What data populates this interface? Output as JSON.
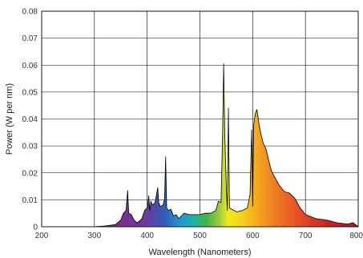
{
  "chart_data": {
    "type": "area",
    "xlabel": "Wavelength (Nanometers)",
    "ylabel": "Power (W per nm)",
    "xlim": [
      200,
      800
    ],
    "ylim": [
      0,
      0.08
    ],
    "x_ticks": [
      "200",
      "300",
      "400",
      "500",
      "600",
      "700",
      "800"
    ],
    "y_ticks": [
      "0",
      "0.01",
      "0.02",
      "0.03",
      "0.04",
      "0.05",
      "0.06",
      "0.07",
      "0.08"
    ],
    "grid": true,
    "fill": "visible-spectrum-gradient",
    "series": [
      {
        "x": [
          300,
          320,
          340,
          350,
          355,
          360,
          363,
          365,
          370,
          375,
          380,
          385,
          390,
          395,
          400,
          403,
          405,
          407,
          410,
          415,
          420,
          422,
          425,
          430,
          433,
          435,
          437,
          440,
          445,
          450,
          455,
          460,
          470,
          480,
          490,
          500,
          510,
          520,
          530,
          535,
          540,
          543,
          545,
          547,
          550,
          552,
          554,
          556,
          560,
          570,
          580,
          590,
          595,
          598,
          600,
          602,
          605,
          608,
          610,
          612,
          615,
          620,
          625,
          630,
          635,
          640,
          650,
          660,
          670,
          680,
          690,
          700,
          720,
          740,
          760,
          780,
          790,
          800
        ],
        "y": [
          0,
          0.0003,
          0.0008,
          0.0025,
          0.005,
          0.006,
          0.0135,
          0.005,
          0.0045,
          0.0025,
          0.0015,
          0.002,
          0.003,
          0.006,
          0.007,
          0.0115,
          0.006,
          0.0095,
          0.008,
          0.009,
          0.0145,
          0.009,
          0.0075,
          0.008,
          0.0105,
          0.026,
          0.007,
          0.006,
          0.0065,
          0.004,
          0.0045,
          0.003,
          0.005,
          0.0045,
          0.0045,
          0.0045,
          0.005,
          0.005,
          0.006,
          0.0095,
          0.009,
          0.035,
          0.0605,
          0.035,
          0.0145,
          0.006,
          0.044,
          0.007,
          0.0065,
          0.0055,
          0.006,
          0.007,
          0.012,
          0.036,
          0.0075,
          0.038,
          0.042,
          0.0435,
          0.041,
          0.038,
          0.035,
          0.031,
          0.029,
          0.025,
          0.021,
          0.019,
          0.0155,
          0.013,
          0.0125,
          0.0105,
          0.007,
          0.0045,
          0.003,
          0.0025,
          0.0015,
          0.001,
          0.0015,
          0
        ]
      }
    ]
  }
}
